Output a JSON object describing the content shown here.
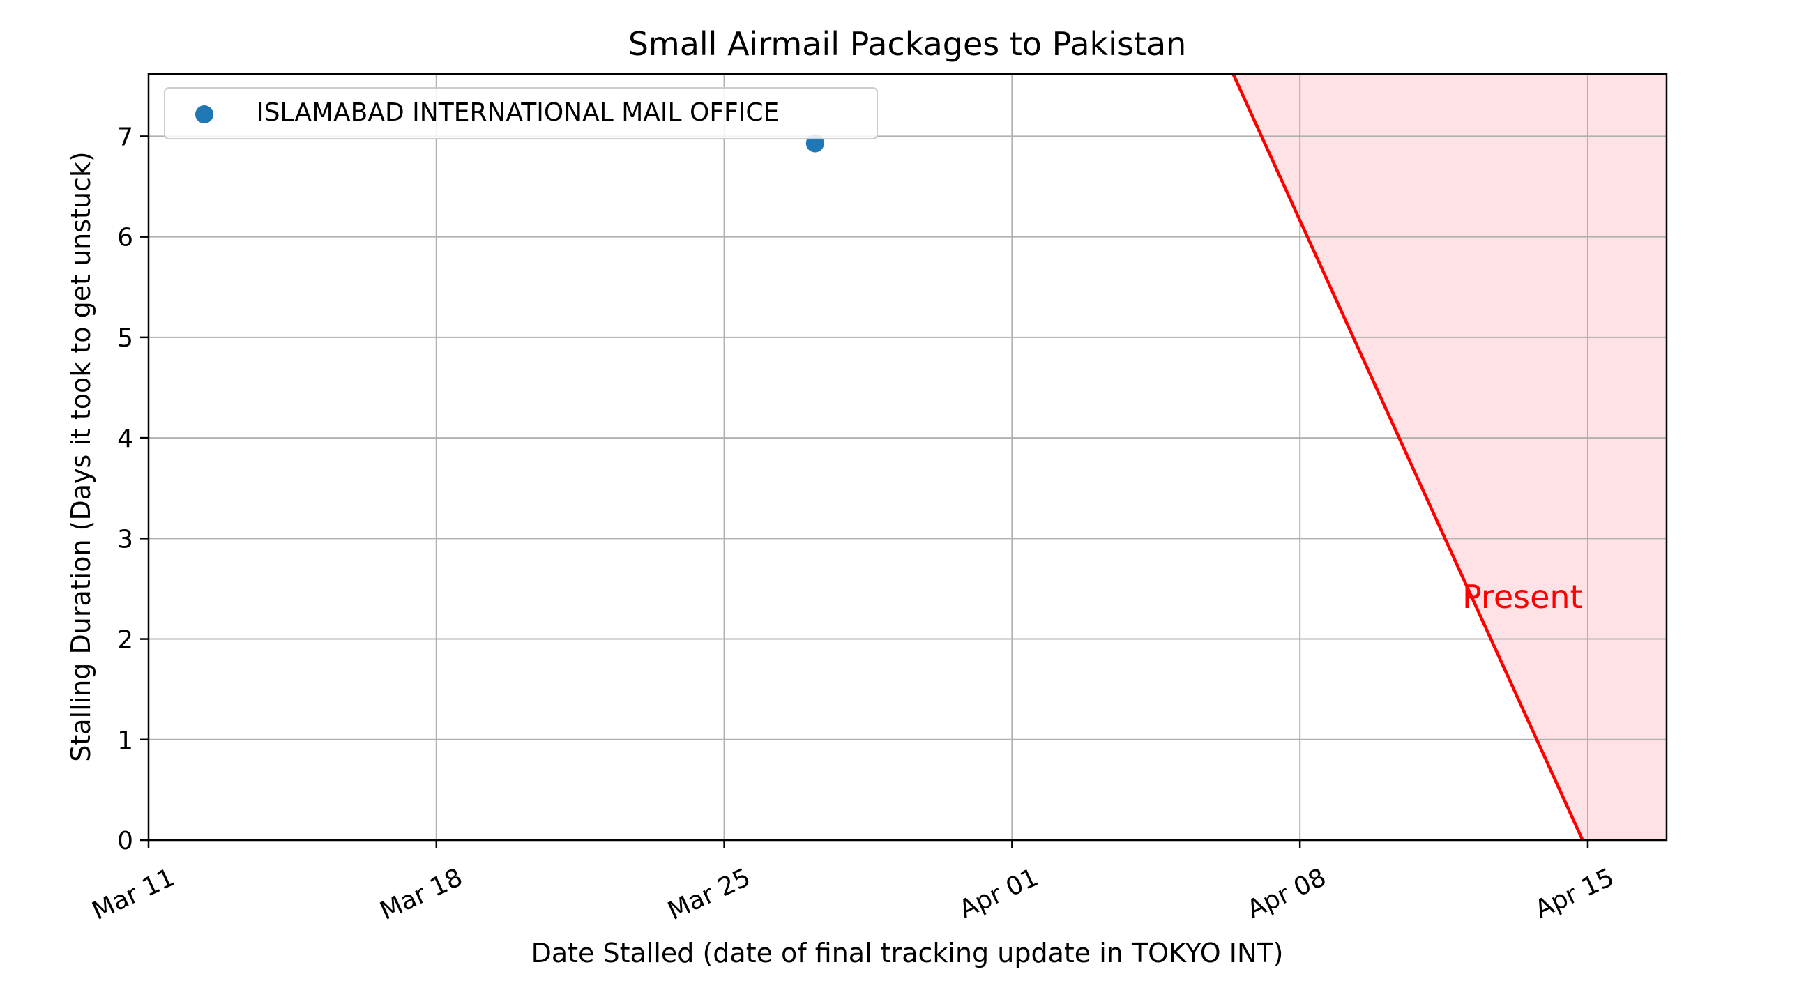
{
  "chart_data": {
    "type": "scatter",
    "title": "Small Airmail Packages to Pakistan",
    "xlabel": "Date Stalled (date of final tracking update in TOKYO INT)",
    "ylabel": "Stalling Duration (Days it took to get unstuck)",
    "xlim": [
      "2024-03-11",
      "2024-04-16T22:00"
    ],
    "ylim": [
      0,
      7.62
    ],
    "x_ticks": [
      {
        "date": "2024-03-11",
        "label": "Mar 11"
      },
      {
        "date": "2024-03-18",
        "label": "Mar 18"
      },
      {
        "date": "2024-03-25",
        "label": "Mar 25"
      },
      {
        "date": "2024-04-01",
        "label": "Apr 01"
      },
      {
        "date": "2024-04-08",
        "label": "Apr 08"
      },
      {
        "date": "2024-04-15",
        "label": "Apr 15"
      }
    ],
    "y_ticks": [
      0,
      1,
      2,
      3,
      4,
      5,
      6,
      7
    ],
    "grid": true,
    "legend_position": "top-left",
    "series": [
      {
        "name": "ISLAMABAD INTERNATIONAL MAIL OFFICE",
        "color": "#1f77b4",
        "points": [
          {
            "x": "2024-03-27T05:00",
            "y": 6.93
          }
        ]
      }
    ],
    "present_line": {
      "label": "Present",
      "color": "#ff0000",
      "fill_color": "#ffe2e5",
      "points": [
        {
          "x": "2024-04-06T09:00",
          "y": 7.62
        },
        {
          "x": "2024-04-14T21:00",
          "y": 0
        }
      ]
    }
  }
}
